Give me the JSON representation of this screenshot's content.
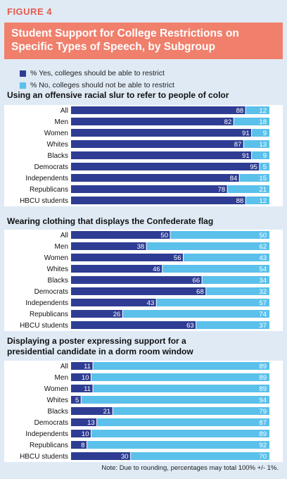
{
  "figure_label": "FIGURE 4",
  "title": "Student Support for College Restrictions on Specific Types of Speech, by Subgroup",
  "legend": [
    {
      "label": "% Yes, colleges should be able to restrict",
      "color": "#2e3d93"
    },
    {
      "label": "% No, colleges should not be able to restrict",
      "color": "#5bc0ea"
    }
  ],
  "note": "Note: Due to rounding, percentages may total 100% +/- 1%.",
  "chart_data": [
    {
      "type": "bar",
      "title": "Using an offensive racial slur to refer to people of color",
      "categories": [
        "All",
        "Men",
        "Women",
        "Whites",
        "Blacks",
        "Democrats",
        "Independents",
        "Republicans",
        "HBCU students"
      ],
      "series": [
        {
          "name": "% Yes, colleges should be able to restrict",
          "values": [
            88,
            82,
            91,
            87,
            91,
            95,
            84,
            78,
            88
          ]
        },
        {
          "name": "% No, colleges should not be able to restrict",
          "values": [
            12,
            18,
            9,
            13,
            9,
            5,
            15,
            21,
            12
          ]
        }
      ],
      "stacked": true
    },
    {
      "type": "bar",
      "title": "Wearing clothing that displays the Confederate flag",
      "categories": [
        "All",
        "Men",
        "Women",
        "Whites",
        "Blacks",
        "Democrats",
        "Independents",
        "Republicans",
        "HBCU students"
      ],
      "series": [
        {
          "name": "% Yes, colleges should be able to restrict",
          "values": [
            50,
            38,
            56,
            46,
            66,
            68,
            43,
            26,
            63
          ]
        },
        {
          "name": "% No, colleges should not be able to restrict",
          "values": [
            50,
            62,
            43,
            54,
            34,
            32,
            57,
            74,
            37
          ]
        }
      ],
      "stacked": true
    },
    {
      "type": "bar",
      "title": "Displaying a poster expressing support for a presidential candidate in a dorm room window",
      "categories": [
        "All",
        "Men",
        "Women",
        "Whites",
        "Blacks",
        "Democrats",
        "Independents",
        "Republicans",
        "HBCU students"
      ],
      "series": [
        {
          "name": "% Yes, colleges should be able to restrict",
          "values": [
            11,
            10,
            11,
            5,
            21,
            13,
            10,
            8,
            30
          ]
        },
        {
          "name": "% No, colleges should not be able to restrict",
          "values": [
            89,
            89,
            89,
            94,
            79,
            87,
            89,
            92,
            70
          ]
        }
      ],
      "stacked": true
    }
  ]
}
